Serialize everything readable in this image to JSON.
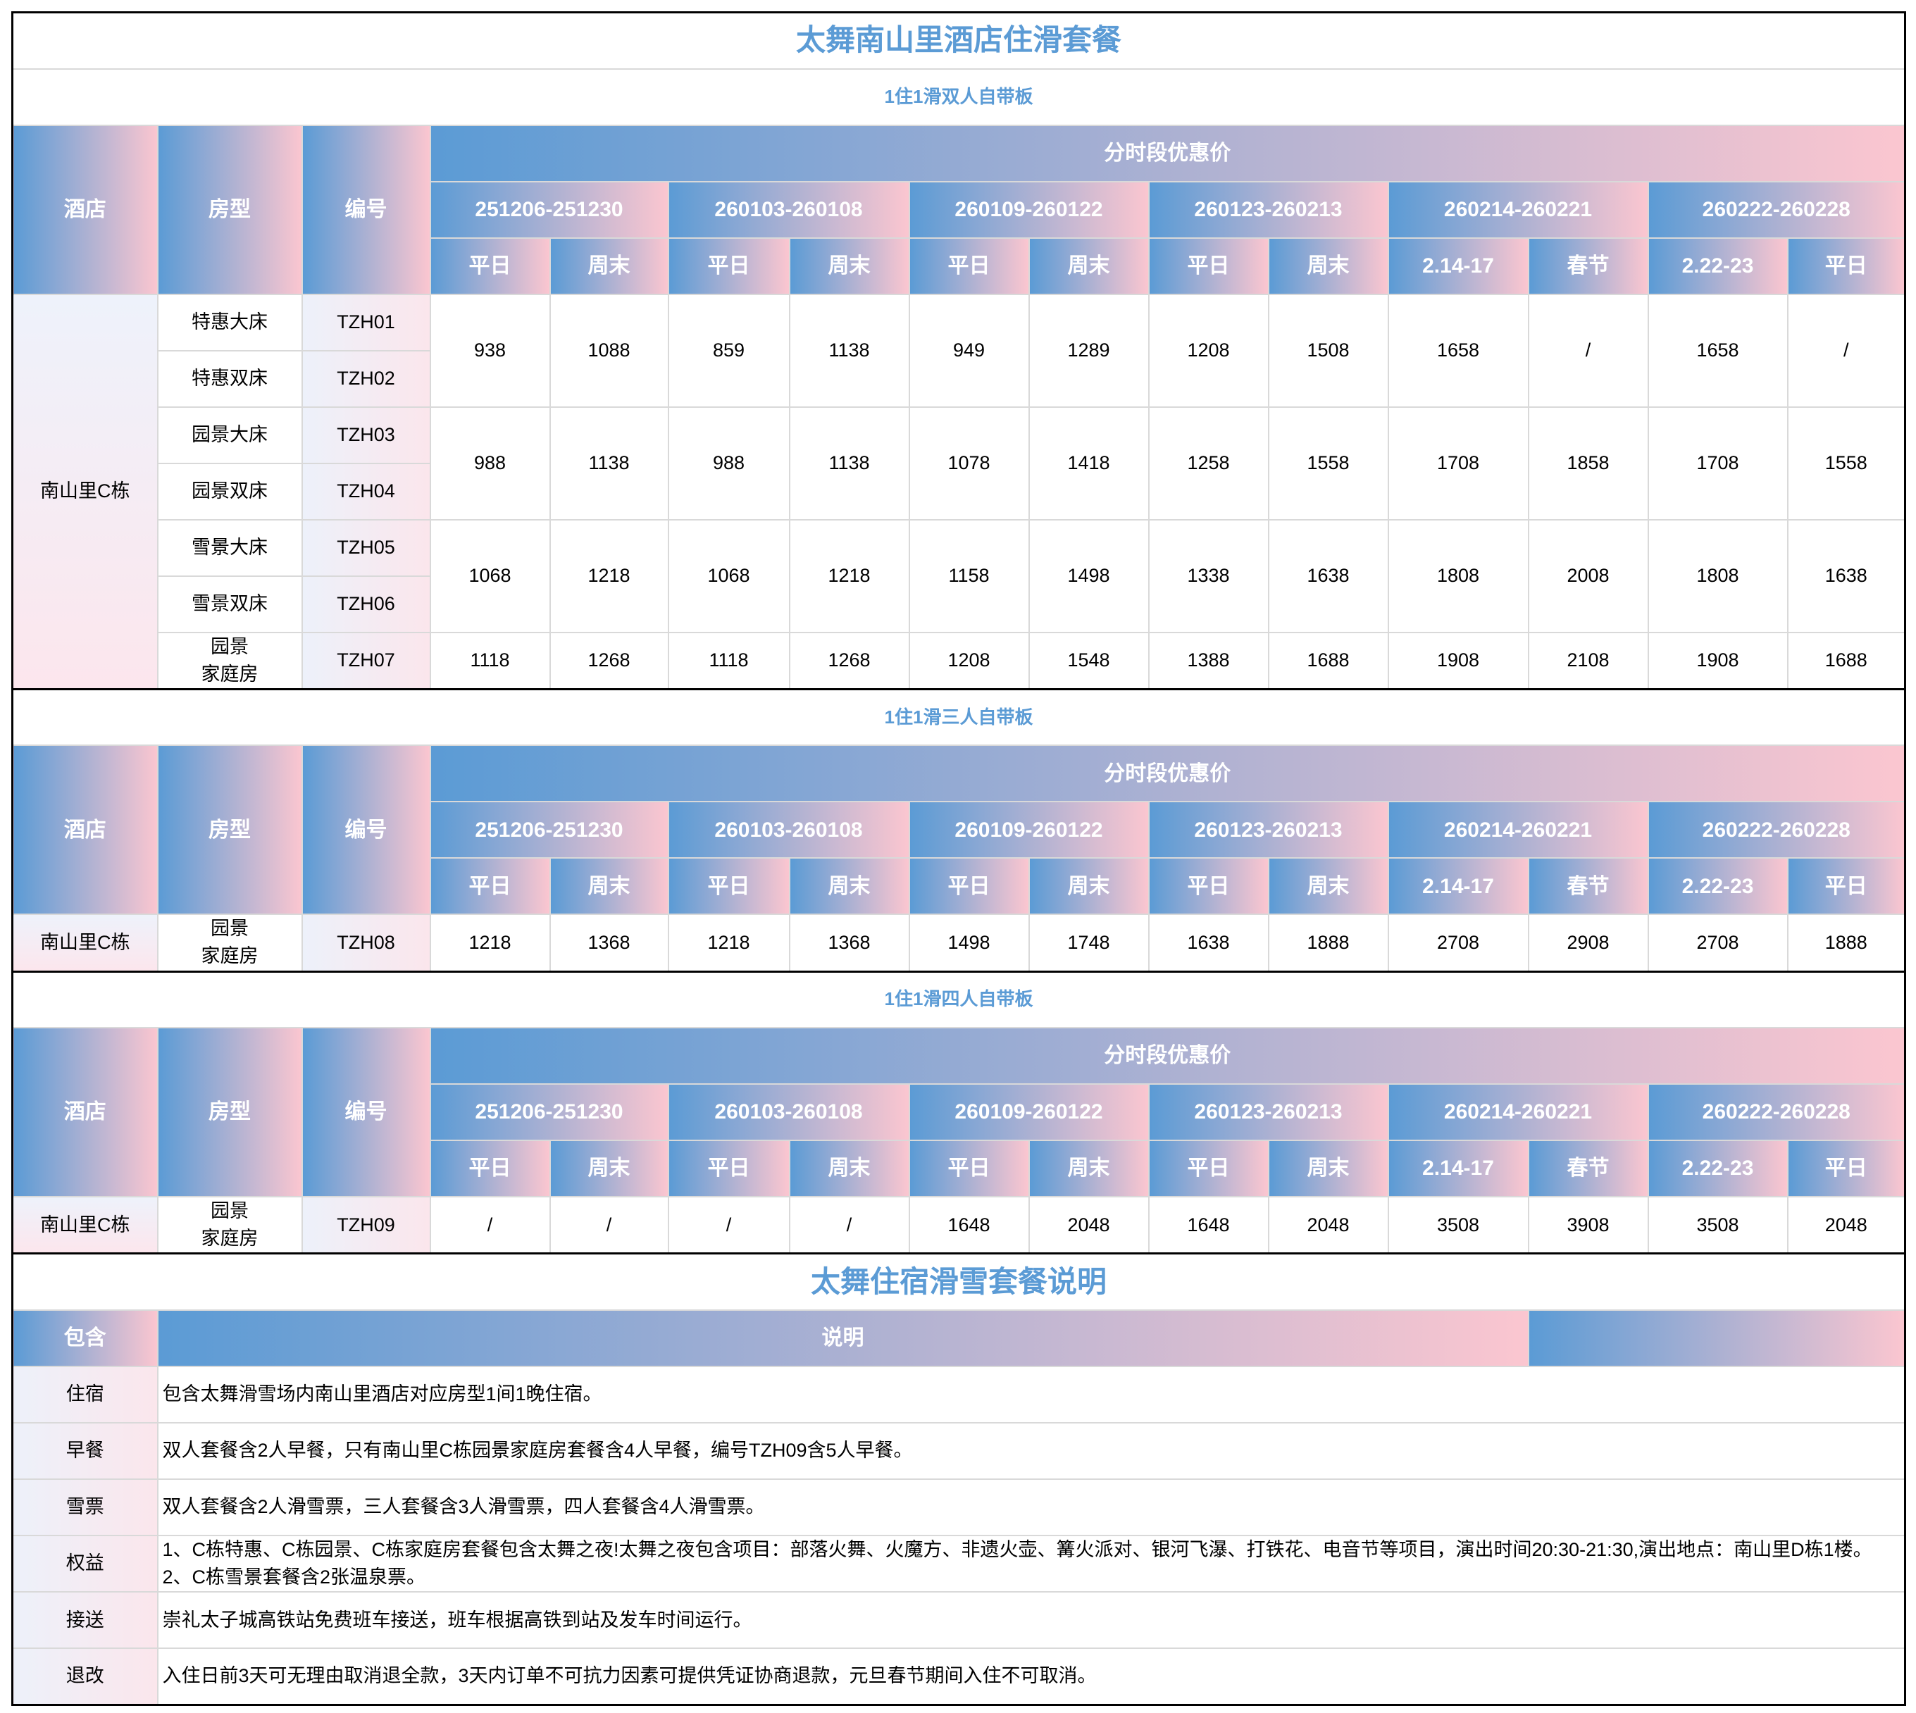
{
  "title": "太舞南山里酒店住滑套餐",
  "sections": [
    {
      "subtitle": "1住1滑双人自带板",
      "header": {
        "hotel": "酒店",
        "room_type": "房型",
        "code": "编号",
        "period_title": "分时段优惠价",
        "periods": [
          "251206-251230",
          "260103-260108",
          "260109-260122",
          "260123-260213",
          "260214-260221",
          "260222-260228"
        ],
        "day_types": [
          "平日",
          "周末",
          "平日",
          "周末",
          "平日",
          "周末",
          "平日",
          "周末",
          "2.14-17",
          "春节",
          "2.22-23",
          "平日"
        ]
      },
      "hotel": "南山里C栋",
      "groups": [
        {
          "rooms": [
            {
              "type": "特惠大床",
              "code": "TZH01"
            },
            {
              "type": "特惠双床",
              "code": "TZH02"
            }
          ],
          "prices": [
            938,
            1088,
            859,
            1138,
            949,
            1289,
            1208,
            1508,
            1658,
            "/",
            1658,
            "/"
          ]
        },
        {
          "rooms": [
            {
              "type": "园景大床",
              "code": "TZH03"
            },
            {
              "type": "园景双床",
              "code": "TZH04"
            }
          ],
          "prices": [
            988,
            1138,
            988,
            1138,
            1078,
            1418,
            1258,
            1558,
            1708,
            1858,
            1708,
            1558
          ]
        },
        {
          "rooms": [
            {
              "type": "雪景大床",
              "code": "TZH05"
            },
            {
              "type": "雪景双床",
              "code": "TZH06"
            }
          ],
          "prices": [
            1068,
            1218,
            1068,
            1218,
            1158,
            1498,
            1338,
            1638,
            1808,
            2008,
            1808,
            1638
          ]
        },
        {
          "rooms": [
            {
              "type": "园景\n家庭房",
              "code": "TZH07"
            }
          ],
          "prices": [
            1118,
            1268,
            1118,
            1268,
            1208,
            1548,
            1388,
            1688,
            1908,
            2108,
            1908,
            1688
          ]
        }
      ]
    },
    {
      "subtitle": "1住1滑三人自带板",
      "header": {
        "hotel": "酒店",
        "room_type": "房型",
        "code": "编号",
        "period_title": "分时段优惠价",
        "periods": [
          "251206-251230",
          "260103-260108",
          "260109-260122",
          "260123-260213",
          "260214-260221",
          "260222-260228"
        ],
        "day_types": [
          "平日",
          "周末",
          "平日",
          "周末",
          "平日",
          "周末",
          "平日",
          "周末",
          "2.14-17",
          "春节",
          "2.22-23",
          "平日"
        ]
      },
      "hotel": "南山里C栋",
      "groups": [
        {
          "rooms": [
            {
              "type": "园景\n家庭房",
              "code": "TZH08"
            }
          ],
          "prices": [
            1218,
            1368,
            1218,
            1368,
            1498,
            1748,
            1638,
            1888,
            2708,
            2908,
            2708,
            1888
          ]
        }
      ]
    },
    {
      "subtitle": "1住1滑四人自带板",
      "header": {
        "hotel": "酒店",
        "room_type": "房型",
        "code": "编号",
        "period_title": "分时段优惠价",
        "periods": [
          "251206-251230",
          "260103-260108",
          "260109-260122",
          "260123-260213",
          "260214-260221",
          "260222-260228"
        ],
        "day_types": [
          "平日",
          "周末",
          "平日",
          "周末",
          "平日",
          "周末",
          "平日",
          "周末",
          "2.14-17",
          "春节",
          "2.22-23",
          "平日"
        ]
      },
      "hotel": "南山里C栋",
      "groups": [
        {
          "rooms": [
            {
              "type": "园景\n家庭房",
              "code": "TZH09"
            }
          ],
          "prices": [
            "/",
            "/",
            "/",
            "/",
            1648,
            2048,
            1648,
            2048,
            3508,
            3908,
            3508,
            2048
          ]
        }
      ]
    }
  ],
  "notes": {
    "title": "太舞住宿滑雪套餐说明",
    "header": [
      "包含",
      "说明"
    ],
    "rows": [
      {
        "label": "住宿",
        "text": "包含太舞滑雪场内南山里酒店对应房型1间1晚住宿。"
      },
      {
        "label": "早餐",
        "text": "双人套餐含2人早餐，只有南山里C栋园景家庭房套餐含4人早餐，编号TZH09含5人早餐。"
      },
      {
        "label": "雪票",
        "text": "双人套餐含2人滑雪票，三人套餐含3人滑雪票，四人套餐含4人滑雪票。"
      },
      {
        "label": "权益",
        "text": "1、C栋特惠、C栋园景、C栋家庭房套餐包含太舞之夜!太舞之夜包含项目：部落火舞、火魔方、非遗火壶、篝火派对、银河飞瀑、打铁花、电音节等项目，演出时间20:30-21:30,演出地点：南山里D栋1楼。\n2、C栋雪景套餐含2张温泉票。"
      },
      {
        "label": "接送",
        "text": "崇礼太子城高铁站免费班车接送，班车根据高铁到站及发车时间运行。"
      },
      {
        "label": "退改",
        "text": "入住日前3天可无理由取消退全款，3天内订单不可抗力因素可提供凭证协商退款，元旦春节期间入住不可取消。"
      }
    ]
  }
}
